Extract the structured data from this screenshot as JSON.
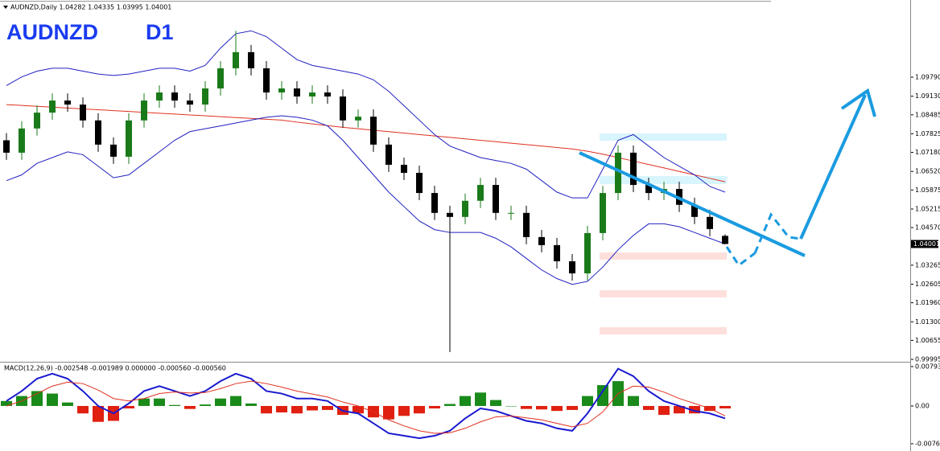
{
  "chart_data": [
    {
      "type": "candlestick",
      "header": "AUDNZD,Daily 1.04282 1.04335 1.03995 1.04001",
      "title": "AUDNZD",
      "subtitle": "D1",
      "open": [
        1.076,
        1.0717,
        1.0801,
        1.0856,
        1.0898,
        1.0884,
        1.0829,
        1.0745,
        1.0703,
        1.0829,
        1.0898,
        1.0926,
        1.0898,
        1.0884,
        1.094,
        1.101,
        1.1066,
        1.101,
        1.0926,
        1.094,
        1.0912,
        1.0926,
        1.0912,
        1.0829,
        1.0842,
        1.0745,
        1.0675,
        1.0647,
        1.0577,
        1.0508,
        1.0494,
        1.055,
        1.0605,
        1.0508,
        1.0508,
        1.0424,
        1.0396,
        1.034,
        1.0298,
        1.0438,
        1.0577,
        1.0717,
        1.0605,
        1.0577,
        1.0591,
        1.0536,
        1.0494,
        1.04282
      ],
      "high": [
        1.0785,
        1.0826,
        1.0881,
        1.0923,
        1.0923,
        1.0909,
        1.0854,
        1.077,
        1.0854,
        1.0923,
        1.0951,
        1.0951,
        1.0923,
        1.0965,
        1.1035,
        1.114,
        1.1091,
        1.1035,
        1.0965,
        1.0965,
        1.0951,
        1.0951,
        1.0937,
        1.0867,
        1.0867,
        1.077,
        1.07,
        1.0672,
        1.0602,
        1.0533,
        1.0575,
        1.063,
        1.063,
        1.0533,
        1.0533,
        1.0449,
        1.0421,
        1.0365,
        1.0463,
        1.0602,
        1.0742,
        1.0742,
        1.063,
        1.0616,
        1.0616,
        1.0561,
        1.0519,
        1.04335
      ],
      "low": [
        1.0692,
        1.0692,
        1.0776,
        1.0831,
        1.0859,
        1.0804,
        1.072,
        1.0678,
        1.0678,
        1.0804,
        1.0873,
        1.0873,
        1.0859,
        1.0859,
        1.0915,
        1.0985,
        1.0985,
        1.0901,
        1.0901,
        1.0887,
        1.0887,
        1.0887,
        1.0804,
        1.0804,
        1.072,
        1.065,
        1.0622,
        1.0552,
        1.0483,
        1.0025,
        1.0469,
        1.0525,
        1.0483,
        1.0483,
        1.0399,
        1.0371,
        1.0315,
        1.0273,
        1.0273,
        1.0413,
        1.0552,
        1.058,
        1.0552,
        1.0552,
        1.0511,
        1.0469,
        1.0427,
        1.03995
      ],
      "close": [
        1.0717,
        1.0801,
        1.0856,
        1.0898,
        1.0884,
        1.0829,
        1.0745,
        1.0703,
        1.0829,
        1.0898,
        1.0926,
        1.0898,
        1.0884,
        1.094,
        1.101,
        1.1066,
        1.101,
        1.0926,
        1.094,
        1.0912,
        1.0926,
        1.0912,
        1.0829,
        1.0842,
        1.0745,
        1.0675,
        1.0647,
        1.0577,
        1.0508,
        1.0494,
        1.055,
        1.0605,
        1.0508,
        1.0508,
        1.0424,
        1.0396,
        1.034,
        1.0298,
        1.0438,
        1.0577,
        1.0717,
        1.0605,
        1.0577,
        1.0591,
        1.0536,
        1.0494,
        1.0452,
        1.04001
      ],
      "up_color": "#1a7a1a",
      "down_color": "#000000",
      "overlays": [
        {
          "color": "#e03020",
          "values": [
            1.0884,
            1.0881,
            1.0878,
            1.0875,
            1.0872,
            1.0869,
            1.0866,
            1.0863,
            1.086,
            1.0857,
            1.0854,
            1.0851,
            1.0848,
            1.0845,
            1.0842,
            1.0839,
            1.0836,
            1.0833,
            1.083,
            1.0823,
            1.0817,
            1.0811,
            1.0805,
            1.08,
            1.0795,
            1.079,
            1.0785,
            1.078,
            1.0775,
            1.077,
            1.0765,
            1.076,
            1.0755,
            1.075,
            1.0745,
            1.074,
            1.0735,
            1.073,
            1.0722,
            1.0712,
            1.07,
            1.0688,
            1.0676,
            1.0664,
            1.0652,
            1.064,
            1.0628,
            1.0616
          ]
        },
        {
          "color": "#2020c0",
          "values": [
            1.095,
            1.098,
            1.1,
            1.101,
            1.101,
            1.1,
            1.099,
            1.0985,
            1.099,
            1.1,
            1.101,
            1.101,
            1.1,
            1.102,
            1.108,
            1.113,
            1.114,
            1.112,
            1.108,
            1.104,
            1.102,
            1.101,
            1.1,
            1.099,
            1.097,
            1.093,
            1.088,
            1.083,
            1.078,
            1.074,
            1.072,
            1.07,
            1.069,
            1.068,
            1.066,
            1.062,
            1.058,
            1.056,
            1.056,
            1.066,
            1.076,
            1.078,
            1.074,
            1.07,
            1.067,
            1.064,
            1.06,
            1.058
          ]
        },
        {
          "color": "#2020c0",
          "values": [
            1.062,
            1.064,
            1.068,
            1.07,
            1.072,
            1.071,
            1.067,
            1.063,
            1.064,
            1.068,
            1.072,
            1.076,
            1.079,
            1.08,
            1.081,
            1.082,
            1.083,
            1.084,
            1.0845,
            1.084,
            1.083,
            1.081,
            1.076,
            1.07,
            1.064,
            1.058,
            1.053,
            1.048,
            1.045,
            1.044,
            1.044,
            1.044,
            1.042,
            1.039,
            1.035,
            1.031,
            1.028,
            1.026,
            1.027,
            1.032,
            1.038,
            1.043,
            1.047,
            1.047,
            1.046,
            1.044,
            1.042,
            1.04
          ]
        }
      ],
      "ylim": [
        0.9994,
        1.1247
      ],
      "yticks": [
        {
          "value": 1.0979,
          "label": "1.09790"
        },
        {
          "value": 1.0913,
          "label": "1.09130"
        },
        1.08485,
        1.07825,
        {
          "value": 1.0718,
          "label": "1.07180"
        },
        {
          "value": 1.0652,
          "label": "1.06520"
        },
        1.05875,
        1.05215,
        {
          "value": 1.0457,
          "label": "1.04570"
        },
        1.03265,
        1.02605,
        {
          "value": 1.0196,
          "label": "1.01960"
        },
        {
          "value": 1.013,
          "label": "1.01300"
        },
        1.00655,
        0.99995
      ],
      "last_price": {
        "value": 1.04001,
        "label": "1.04001"
      }
    },
    {
      "type": "macd",
      "label": "MACD(12,26,9) -0.002548 -0.001989 0.000000 -0.000560 -0.000560",
      "histogram": {
        "up_color": "#1a8a1a",
        "down_color": "#e02010",
        "values": [
          0.001,
          0.002,
          0.003,
          0.0025,
          0.0007,
          -0.0015,
          -0.0032,
          -0.003,
          -0.0005,
          0.0015,
          0.0015,
          0.0002,
          -0.0006,
          0.0003,
          0.0015,
          0.002,
          0.0005,
          -0.0015,
          -0.0013,
          -0.0015,
          -0.0009,
          -0.0008,
          -0.0018,
          -0.0015,
          -0.0023,
          -0.0027,
          -0.002,
          -0.0015,
          -0.0005,
          0.0004,
          0.002,
          0.0027,
          0.0012,
          0.0,
          -0.0006,
          -0.0007,
          -0.001,
          -0.0008,
          0.002,
          0.0042,
          0.005,
          0.002,
          -0.0008,
          -0.0018,
          -0.0015,
          -0.0015,
          -0.001,
          -0.0005
        ]
      },
      "lines": [
        {
          "color": "#1a1ad0",
          "values": [
            0.001,
            0.003,
            0.0055,
            0.0065,
            0.0055,
            0.003,
            0.0,
            -0.0015,
            0.0005,
            0.003,
            0.004,
            0.003,
            0.002,
            0.003,
            0.005,
            0.0065,
            0.0055,
            0.003,
            0.0025,
            0.0015,
            0.0015,
            0.001,
            -0.001,
            -0.0015,
            -0.0035,
            -0.0055,
            -0.006,
            -0.0065,
            -0.006,
            -0.005,
            -0.0025,
            -0.0005,
            -0.001,
            -0.002,
            -0.003,
            -0.0035,
            -0.0045,
            -0.005,
            -0.0015,
            0.003,
            0.0075,
            0.006,
            0.003,
            0.001,
            0.0,
            -0.001,
            -0.0015,
            -0.0025
          ]
        },
        {
          "color": "#e03020",
          "values": [
            0.0,
            0.001,
            0.0025,
            0.004,
            0.0048,
            0.0045,
            0.0032,
            0.0015,
            0.001,
            0.0015,
            0.0025,
            0.0028,
            0.0026,
            0.0027,
            0.0035,
            0.0045,
            0.005,
            0.0045,
            0.0038,
            0.003,
            0.0024,
            0.0018,
            0.0008,
            0.0,
            -0.0012,
            -0.0028,
            -0.004,
            -0.005,
            -0.0055,
            -0.0054,
            -0.0045,
            -0.0032,
            -0.0022,
            -0.002,
            -0.0024,
            -0.0028,
            -0.0035,
            -0.0042,
            -0.0035,
            -0.0012,
            0.0025,
            0.004,
            0.0038,
            0.0028,
            0.0015,
            0.0005,
            -0.0005,
            -0.002
          ]
        }
      ],
      "ylim": [
        -0.00907,
        0.00874
      ],
      "yticks": [
        0.007934,
        {
          "value": 0,
          "label": "0.00"
        },
        -0.007609
      ]
    }
  ]
}
